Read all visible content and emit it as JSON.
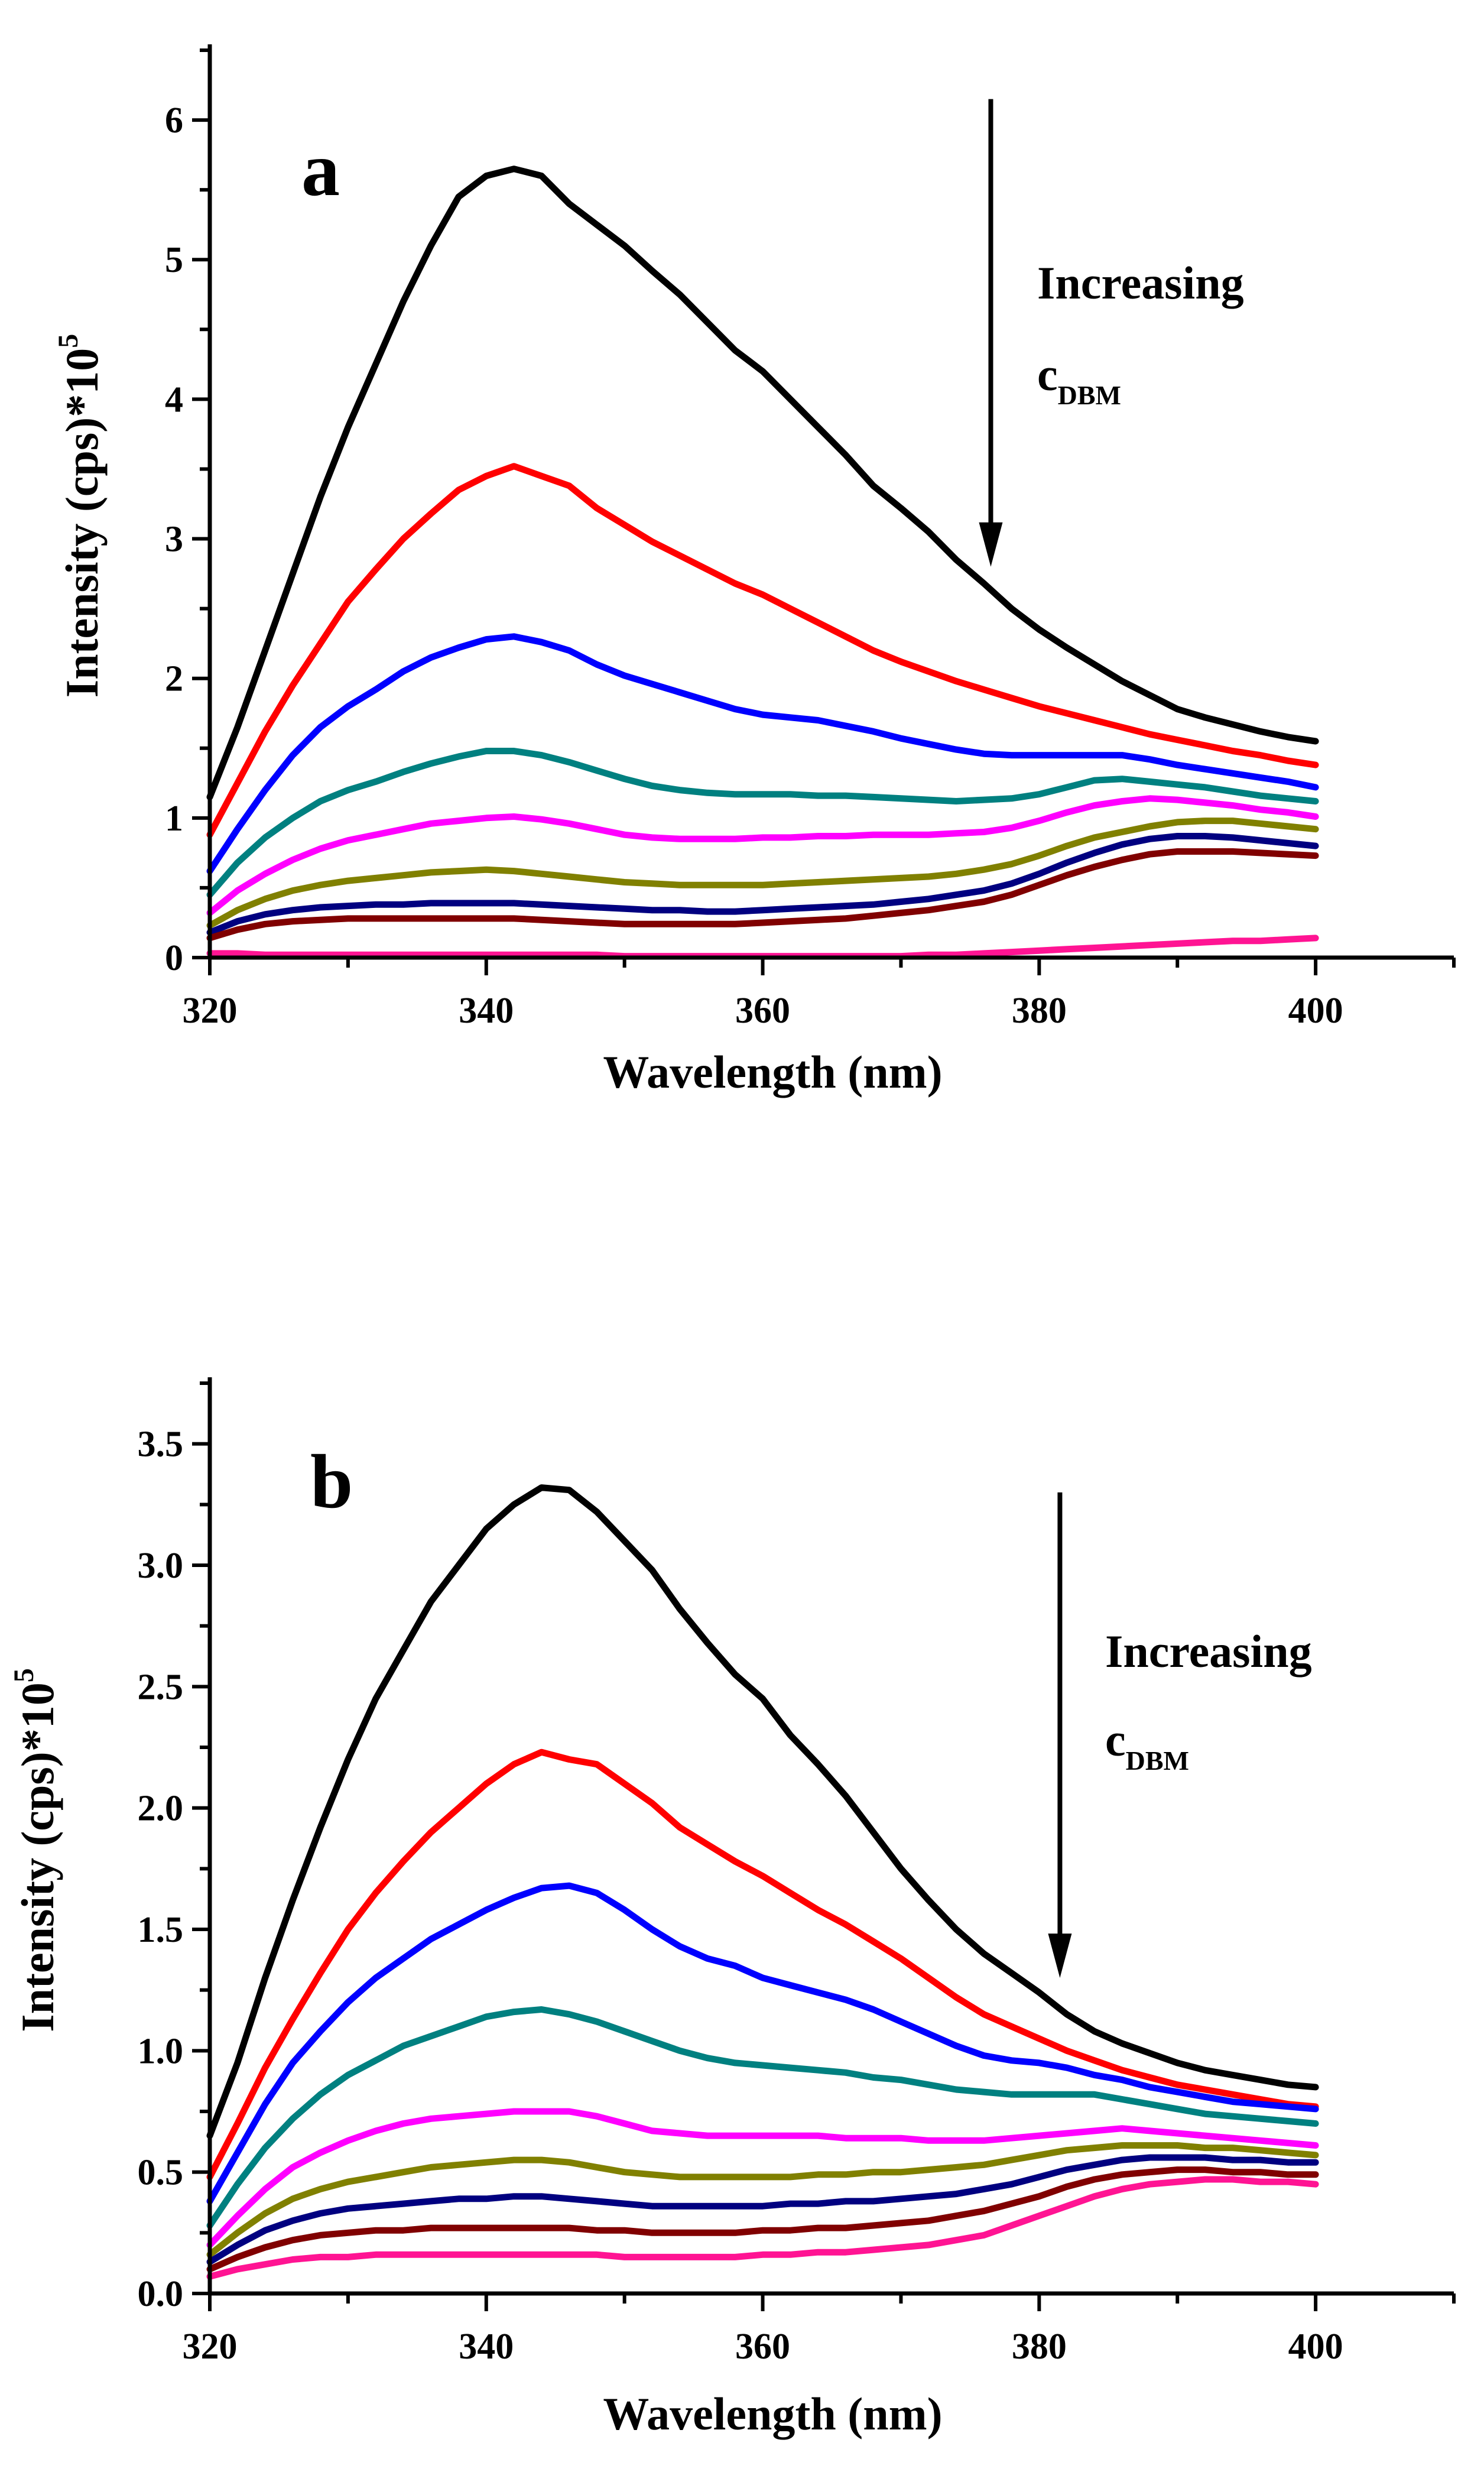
{
  "chart_data": [
    {
      "type": "line",
      "panel_label": "a",
      "xlabel": "Wavelength (nm)",
      "ylabel_main": "Intensity (cps)*10",
      "ylabel_exp": "5",
      "xlim": [
        320,
        410
      ],
      "ylim": [
        0,
        6.5
      ],
      "xticks": [
        320,
        340,
        360,
        380,
        400
      ],
      "yticks": [
        0,
        1,
        2,
        3,
        4,
        5,
        6
      ],
      "ytick_labels": [
        "0",
        "1",
        "2",
        "3",
        "4",
        "5",
        "6"
      ],
      "annotation": {
        "line1": "Increasing",
        "c": "c",
        "sub": "DBM",
        "arrow_x": 376.5,
        "arrow_from": 6.15,
        "arrow_to": 2.8
      },
      "x": [
        320,
        322,
        324,
        326,
        328,
        330,
        332,
        334,
        336,
        338,
        340,
        342,
        344,
        346,
        348,
        350,
        352,
        354,
        356,
        358,
        360,
        362,
        364,
        366,
        368,
        370,
        372,
        374,
        376,
        378,
        380,
        382,
        384,
        386,
        388,
        390,
        392,
        394,
        396,
        398,
        400
      ],
      "series": [
        {
          "name": "s1",
          "color": "#000000",
          "values": [
            1.15,
            1.65,
            2.2,
            2.75,
            3.3,
            3.8,
            4.25,
            4.7,
            5.1,
            5.45,
            5.6,
            5.65,
            5.6,
            5.4,
            5.25,
            5.1,
            4.92,
            4.75,
            4.55,
            4.35,
            4.2,
            4.0,
            3.8,
            3.6,
            3.38,
            3.22,
            3.05,
            2.85,
            2.68,
            2.5,
            2.35,
            2.22,
            2.1,
            1.98,
            1.88,
            1.78,
            1.72,
            1.67,
            1.62,
            1.58,
            1.55
          ]
        },
        {
          "name": "s2",
          "color": "#ff0000",
          "values": [
            0.88,
            1.25,
            1.62,
            1.95,
            2.25,
            2.55,
            2.78,
            3.0,
            3.18,
            3.35,
            3.45,
            3.52,
            3.45,
            3.38,
            3.22,
            3.1,
            2.98,
            2.88,
            2.78,
            2.68,
            2.6,
            2.5,
            2.4,
            2.3,
            2.2,
            2.12,
            2.05,
            1.98,
            1.92,
            1.86,
            1.8,
            1.75,
            1.7,
            1.65,
            1.6,
            1.56,
            1.52,
            1.48,
            1.45,
            1.41,
            1.38
          ]
        },
        {
          "name": "s3",
          "color": "#0000ff",
          "values": [
            0.62,
            0.92,
            1.2,
            1.45,
            1.65,
            1.8,
            1.92,
            2.05,
            2.15,
            2.22,
            2.28,
            2.3,
            2.26,
            2.2,
            2.1,
            2.02,
            1.96,
            1.9,
            1.84,
            1.78,
            1.74,
            1.72,
            1.7,
            1.66,
            1.62,
            1.57,
            1.53,
            1.49,
            1.46,
            1.45,
            1.45,
            1.45,
            1.45,
            1.45,
            1.42,
            1.38,
            1.35,
            1.32,
            1.29,
            1.26,
            1.22
          ]
        },
        {
          "name": "s4",
          "color": "#008080",
          "values": [
            0.45,
            0.68,
            0.86,
            1.0,
            1.12,
            1.2,
            1.26,
            1.33,
            1.39,
            1.44,
            1.48,
            1.48,
            1.45,
            1.4,
            1.34,
            1.28,
            1.23,
            1.2,
            1.18,
            1.17,
            1.17,
            1.17,
            1.16,
            1.16,
            1.15,
            1.14,
            1.13,
            1.12,
            1.13,
            1.14,
            1.17,
            1.22,
            1.27,
            1.28,
            1.26,
            1.24,
            1.22,
            1.19,
            1.16,
            1.14,
            1.12
          ]
        },
        {
          "name": "s5",
          "color": "#ff00ff",
          "values": [
            0.32,
            0.48,
            0.6,
            0.7,
            0.78,
            0.84,
            0.88,
            0.92,
            0.96,
            0.98,
            1.0,
            1.01,
            0.99,
            0.96,
            0.92,
            0.88,
            0.86,
            0.85,
            0.85,
            0.85,
            0.86,
            0.86,
            0.87,
            0.87,
            0.88,
            0.88,
            0.88,
            0.89,
            0.9,
            0.93,
            0.98,
            1.04,
            1.09,
            1.12,
            1.14,
            1.13,
            1.11,
            1.09,
            1.06,
            1.04,
            1.01
          ]
        },
        {
          "name": "s6",
          "color": "#808000",
          "values": [
            0.23,
            0.34,
            0.42,
            0.48,
            0.52,
            0.55,
            0.57,
            0.59,
            0.61,
            0.62,
            0.63,
            0.62,
            0.6,
            0.58,
            0.56,
            0.54,
            0.53,
            0.52,
            0.52,
            0.52,
            0.52,
            0.53,
            0.54,
            0.55,
            0.56,
            0.57,
            0.58,
            0.6,
            0.63,
            0.67,
            0.73,
            0.8,
            0.86,
            0.9,
            0.94,
            0.97,
            0.98,
            0.98,
            0.96,
            0.94,
            0.92
          ]
        },
        {
          "name": "s7",
          "color": "#000080",
          "values": [
            0.18,
            0.26,
            0.31,
            0.34,
            0.36,
            0.37,
            0.38,
            0.38,
            0.39,
            0.39,
            0.39,
            0.39,
            0.38,
            0.37,
            0.36,
            0.35,
            0.34,
            0.34,
            0.33,
            0.33,
            0.34,
            0.35,
            0.36,
            0.37,
            0.38,
            0.4,
            0.42,
            0.45,
            0.48,
            0.53,
            0.6,
            0.68,
            0.75,
            0.81,
            0.85,
            0.87,
            0.87,
            0.86,
            0.84,
            0.82,
            0.8
          ]
        },
        {
          "name": "s8",
          "color": "#800000",
          "values": [
            0.14,
            0.2,
            0.24,
            0.26,
            0.27,
            0.28,
            0.28,
            0.28,
            0.28,
            0.28,
            0.28,
            0.28,
            0.27,
            0.26,
            0.25,
            0.24,
            0.24,
            0.24,
            0.24,
            0.24,
            0.25,
            0.26,
            0.27,
            0.28,
            0.3,
            0.32,
            0.34,
            0.37,
            0.4,
            0.45,
            0.52,
            0.59,
            0.65,
            0.7,
            0.74,
            0.76,
            0.76,
            0.76,
            0.75,
            0.74,
            0.73
          ]
        },
        {
          "name": "s9",
          "color": "#ff1493",
          "values": [
            0.03,
            0.03,
            0.02,
            0.02,
            0.02,
            0.02,
            0.02,
            0.02,
            0.02,
            0.02,
            0.02,
            0.02,
            0.02,
            0.02,
            0.02,
            0.01,
            0.01,
            0.01,
            0.01,
            0.01,
            0.01,
            0.01,
            0.01,
            0.01,
            0.01,
            0.01,
            0.02,
            0.02,
            0.03,
            0.04,
            0.05,
            0.06,
            0.07,
            0.08,
            0.09,
            0.1,
            0.11,
            0.12,
            0.12,
            0.13,
            0.14
          ]
        }
      ]
    },
    {
      "type": "line",
      "panel_label": "b",
      "xlabel": "Wavelength (nm)",
      "ylabel_main": "Intensity (cps)*10",
      "ylabel_exp": "5",
      "xlim": [
        320,
        410
      ],
      "ylim": [
        0,
        3.75
      ],
      "xticks": [
        320,
        340,
        360,
        380,
        400
      ],
      "yticks": [
        0,
        0.5,
        1.0,
        1.5,
        2.0,
        2.5,
        3.0,
        3.5
      ],
      "ytick_labels": [
        "0.0",
        "0.5",
        "1.0",
        "1.5",
        "2.0",
        "2.5",
        "3.0",
        "3.5"
      ],
      "annotation": {
        "line1": "Increasing",
        "c": "c",
        "sub": "DBM",
        "arrow_x": 381.5,
        "arrow_from": 3.3,
        "arrow_to": 1.3
      },
      "x": [
        320,
        322,
        324,
        326,
        328,
        330,
        332,
        334,
        336,
        338,
        340,
        342,
        344,
        346,
        348,
        350,
        352,
        354,
        356,
        358,
        360,
        362,
        364,
        366,
        368,
        370,
        372,
        374,
        376,
        378,
        380,
        382,
        384,
        386,
        388,
        390,
        392,
        394,
        396,
        398,
        400
      ],
      "series": [
        {
          "name": "s1",
          "color": "#000000",
          "values": [
            0.65,
            0.95,
            1.3,
            1.62,
            1.92,
            2.2,
            2.45,
            2.65,
            2.85,
            3.0,
            3.15,
            3.25,
            3.32,
            3.31,
            3.22,
            3.1,
            2.98,
            2.82,
            2.68,
            2.55,
            2.45,
            2.3,
            2.18,
            2.05,
            1.9,
            1.75,
            1.62,
            1.5,
            1.4,
            1.32,
            1.24,
            1.15,
            1.08,
            1.03,
            0.99,
            0.95,
            0.92,
            0.9,
            0.88,
            0.86,
            0.85
          ]
        },
        {
          "name": "s2",
          "color": "#ff0000",
          "values": [
            0.48,
            0.7,
            0.93,
            1.13,
            1.32,
            1.5,
            1.65,
            1.78,
            1.9,
            2.0,
            2.1,
            2.18,
            2.23,
            2.2,
            2.18,
            2.1,
            2.02,
            1.92,
            1.85,
            1.78,
            1.72,
            1.65,
            1.58,
            1.52,
            1.45,
            1.38,
            1.3,
            1.22,
            1.15,
            1.1,
            1.05,
            1.0,
            0.96,
            0.92,
            0.89,
            0.86,
            0.84,
            0.82,
            0.8,
            0.78,
            0.77
          ]
        },
        {
          "name": "s3",
          "color": "#0000ff",
          "values": [
            0.38,
            0.58,
            0.78,
            0.95,
            1.08,
            1.2,
            1.3,
            1.38,
            1.46,
            1.52,
            1.58,
            1.63,
            1.67,
            1.68,
            1.65,
            1.58,
            1.5,
            1.43,
            1.38,
            1.35,
            1.3,
            1.27,
            1.24,
            1.21,
            1.17,
            1.12,
            1.07,
            1.02,
            0.98,
            0.96,
            0.95,
            0.93,
            0.9,
            0.88,
            0.85,
            0.83,
            0.81,
            0.79,
            0.78,
            0.77,
            0.76
          ]
        },
        {
          "name": "s4",
          "color": "#008080",
          "values": [
            0.28,
            0.45,
            0.6,
            0.72,
            0.82,
            0.9,
            0.96,
            1.02,
            1.06,
            1.1,
            1.14,
            1.16,
            1.17,
            1.15,
            1.12,
            1.08,
            1.04,
            1.0,
            0.97,
            0.95,
            0.94,
            0.93,
            0.92,
            0.91,
            0.89,
            0.88,
            0.86,
            0.84,
            0.83,
            0.82,
            0.82,
            0.82,
            0.82,
            0.8,
            0.78,
            0.76,
            0.74,
            0.73,
            0.72,
            0.71,
            0.7
          ]
        },
        {
          "name": "s5",
          "color": "#ff00ff",
          "values": [
            0.2,
            0.32,
            0.43,
            0.52,
            0.58,
            0.63,
            0.67,
            0.7,
            0.72,
            0.73,
            0.74,
            0.75,
            0.75,
            0.75,
            0.73,
            0.7,
            0.67,
            0.66,
            0.65,
            0.65,
            0.65,
            0.65,
            0.65,
            0.64,
            0.64,
            0.64,
            0.63,
            0.63,
            0.63,
            0.64,
            0.65,
            0.66,
            0.67,
            0.68,
            0.67,
            0.66,
            0.65,
            0.64,
            0.63,
            0.62,
            0.61
          ]
        },
        {
          "name": "s6",
          "color": "#808000",
          "values": [
            0.16,
            0.25,
            0.33,
            0.39,
            0.43,
            0.46,
            0.48,
            0.5,
            0.52,
            0.53,
            0.54,
            0.55,
            0.55,
            0.54,
            0.52,
            0.5,
            0.49,
            0.48,
            0.48,
            0.48,
            0.48,
            0.48,
            0.49,
            0.49,
            0.5,
            0.5,
            0.51,
            0.52,
            0.53,
            0.55,
            0.57,
            0.59,
            0.6,
            0.61,
            0.61,
            0.61,
            0.6,
            0.6,
            0.59,
            0.58,
            0.57
          ]
        },
        {
          "name": "s7",
          "color": "#000080",
          "values": [
            0.13,
            0.2,
            0.26,
            0.3,
            0.33,
            0.35,
            0.36,
            0.37,
            0.38,
            0.39,
            0.39,
            0.4,
            0.4,
            0.39,
            0.38,
            0.37,
            0.36,
            0.36,
            0.36,
            0.36,
            0.36,
            0.37,
            0.37,
            0.38,
            0.38,
            0.39,
            0.4,
            0.41,
            0.43,
            0.45,
            0.48,
            0.51,
            0.53,
            0.55,
            0.56,
            0.56,
            0.56,
            0.55,
            0.55,
            0.54,
            0.54
          ]
        },
        {
          "name": "s8",
          "color": "#800000",
          "values": [
            0.1,
            0.15,
            0.19,
            0.22,
            0.24,
            0.25,
            0.26,
            0.26,
            0.27,
            0.27,
            0.27,
            0.27,
            0.27,
            0.27,
            0.26,
            0.26,
            0.25,
            0.25,
            0.25,
            0.25,
            0.26,
            0.26,
            0.27,
            0.27,
            0.28,
            0.29,
            0.3,
            0.32,
            0.34,
            0.37,
            0.4,
            0.44,
            0.47,
            0.49,
            0.5,
            0.51,
            0.51,
            0.5,
            0.5,
            0.49,
            0.49
          ]
        },
        {
          "name": "s9",
          "color": "#ff1493",
          "values": [
            0.07,
            0.1,
            0.12,
            0.14,
            0.15,
            0.15,
            0.16,
            0.16,
            0.16,
            0.16,
            0.16,
            0.16,
            0.16,
            0.16,
            0.16,
            0.15,
            0.15,
            0.15,
            0.15,
            0.15,
            0.16,
            0.16,
            0.17,
            0.17,
            0.18,
            0.19,
            0.2,
            0.22,
            0.24,
            0.28,
            0.32,
            0.36,
            0.4,
            0.43,
            0.45,
            0.46,
            0.47,
            0.47,
            0.46,
            0.46,
            0.45
          ]
        }
      ]
    }
  ]
}
